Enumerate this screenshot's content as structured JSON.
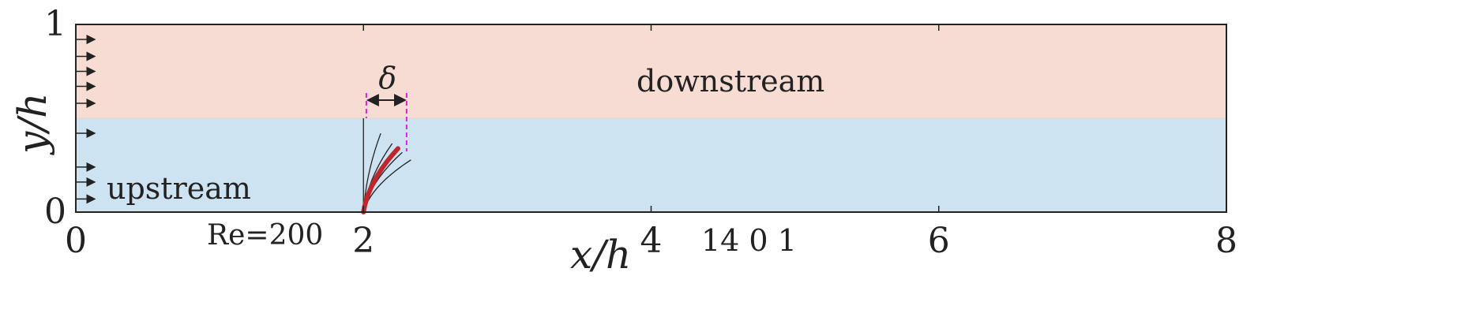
{
  "labels": {
    "xlabel": "x/h",
    "ylabel": "y/h",
    "upstream": "upstream",
    "downstream": "downstream",
    "reynolds": "Re=200",
    "delta": "δ",
    "stray_numbers": "14 0 1"
  },
  "axes": {
    "xticks": [
      "0",
      "2",
      "4",
      "6",
      "8"
    ],
    "yticks": [
      "0",
      "1"
    ],
    "xlim": [
      0,
      8
    ],
    "ylim": [
      0,
      1
    ]
  },
  "colors": {
    "downstream_fill": "#f6dcd2",
    "upstream_fill": "#cde3f1",
    "filament": "#c0272d",
    "delta_marker": "#e020e0",
    "lines": "#222222"
  },
  "layers": {
    "interface_y": 0.5
  },
  "inlet_arrows": {
    "y": [
      0.07,
      0.16,
      0.24,
      0.42,
      0.58,
      0.67,
      0.75,
      0.83,
      0.92
    ]
  },
  "filament": {
    "base_x": 2.0,
    "length": 0.5,
    "envelope_x_offsets": [
      0,
      0.12,
      0.2,
      0.27,
      0.33
    ],
    "highlight_x_offset": 0.24,
    "delta_x": [
      2.02,
      2.3
    ]
  }
}
